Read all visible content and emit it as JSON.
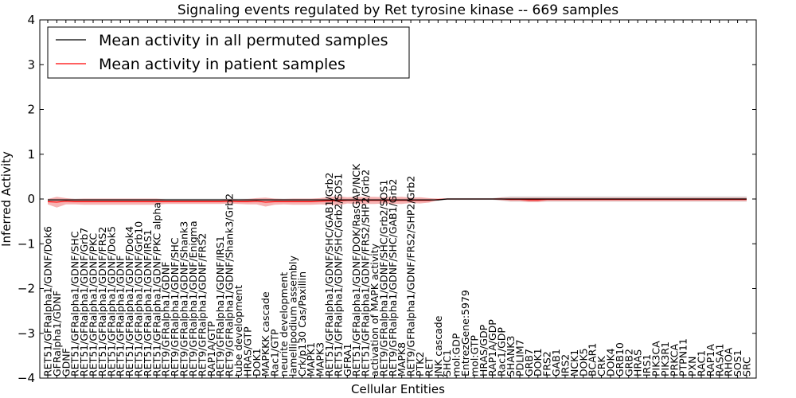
{
  "chart_data": {
    "type": "line",
    "title": "Signaling events regulated by Ret tyrosine kinase -- 669 samples",
    "xlabel": "Cellular Entities",
    "ylabel": "Inferred Activity",
    "ylim": [
      -4,
      4
    ],
    "yticks": [
      "−4",
      "−3",
      "−2",
      "−1",
      "0",
      "1",
      "2",
      "3",
      "4"
    ],
    "grid": false,
    "legend_position": "upper-left",
    "categories": [
      "RET51/GFRalpha1/GDNF/Dok6",
      "GFRalpha1/GDNF",
      "GDNF",
      "RET51/GFRalpha1/GDNF/SHC",
      "RET51/GFRalpha1/GDNF/Grb7",
      "RET51/GFRalpha1/GDNF/PKC",
      "RET51/GFRalpha1/GDNF/FRS2",
      "RET51/GFRalpha1/GDNF/Dok5",
      "RET51/GFRalpha1/GDNF",
      "RET51/GFRalpha1/GDNF/Dok4",
      "RET51/GFRalpha1/GDNF/Grb10",
      "RET51/GFRalpha1/GDNF/IRS1",
      "RET51/GFRalpha1/GDNF/PKC alpha",
      "RET9/GFRalpha1/GDNF",
      "RET9/GFRalpha1/GDNF/SHC",
      "RET9/GFRalpha1/GDNF/Shank3",
      "RET9/GFRalpha1/GDNF/Enigma",
      "RET9/GFRalpha1/GDNF/FRS2",
      "RAP1A/GTP",
      "RET9/GFRalpha1/GDNF/IRS1",
      "RET9/GFRalpha1/GDNF/Shank3/Grb2",
      "tube development",
      "HRAS/GTP",
      "DOK1",
      "MAPKKK cascade",
      "Rac1/GTP",
      "neurite development",
      "lamellipodium assembly",
      "Crk/p130 Cas/Paxillin",
      "MAPK1",
      "MAPK3",
      "RET51/GFRalpha1/GDNF/SHC/GAB1/Grb2",
      "RET51/GFRalpha1/GDNF/SHC/Grb2/SOS1",
      "GFRA1",
      "RET51/GFRalpha1/GDNF/DOK/RasGAP/NCK",
      "RET51/GFRalpha1/GDNF/FRS2/SHP2/Grb2",
      "activation of MAPK activity",
      "RET9/GFRalpha1/GDNF/SHC/Grb2/SOS1",
      "RET9/GFRalpha1/GDNF/SHC/GAB1/Grb2",
      "MAPK8",
      "RET9/GFRalpha1/GDNF/FRS2/SHP2/Grb2",
      "PTK2",
      "RET",
      "JNK cascade",
      "SHC1",
      "mol:GDP",
      "EntrezGene:5979",
      "mol:GTP",
      "HRAS/GDP",
      "RAP1A/GDP",
      "Rac1/GDP",
      "SHANK3",
      "PDLIM7",
      "GRB7",
      "DOK1",
      "FRS2",
      "GAB1",
      "IRS2",
      "NCK1",
      "DOK5",
      "BCAR1",
      "CRK",
      "DOK4",
      "GRB10",
      "GRB2",
      "HRAS",
      "IRS1",
      "PIK3CA",
      "PIK3R1",
      "PRKCA",
      "PTPN11",
      "PXN",
      "RAC1",
      "RAP1A",
      "RASA1",
      "RHOA",
      "SOS1",
      "SRC"
    ],
    "series": [
      {
        "name": "Mean activity in all permuted samples",
        "color": "#000000",
        "values": [
          -0.02,
          -0.02,
          -0.02,
          -0.02,
          -0.02,
          -0.02,
          -0.02,
          -0.02,
          -0.02,
          -0.02,
          -0.02,
          -0.02,
          -0.02,
          -0.02,
          -0.02,
          -0.02,
          -0.02,
          -0.02,
          -0.02,
          -0.02,
          -0.02,
          -0.02,
          -0.02,
          -0.02,
          -0.02,
          -0.02,
          -0.02,
          -0.02,
          -0.02,
          -0.02,
          -0.02,
          -0.02,
          -0.02,
          -0.02,
          -0.02,
          -0.02,
          -0.02,
          -0.02,
          -0.02,
          -0.02,
          -0.02,
          -0.02,
          -0.02,
          -0.02,
          0,
          0,
          0,
          0,
          0,
          0,
          0,
          0,
          0,
          0,
          0,
          0,
          0,
          0,
          0,
          0,
          0,
          0,
          0,
          0,
          0,
          0,
          0,
          0,
          0,
          0,
          0,
          0,
          0,
          0,
          0,
          0,
          0,
          0
        ]
      },
      {
        "name": "Mean activity in patient samples",
        "color": "#ff0000",
        "fill_color": "#f08080",
        "values": [
          -0.06,
          -0.07,
          -0.05,
          -0.06,
          -0.06,
          -0.06,
          -0.06,
          -0.06,
          -0.06,
          -0.06,
          -0.06,
          -0.06,
          -0.06,
          -0.06,
          -0.06,
          -0.06,
          -0.06,
          -0.06,
          -0.06,
          -0.06,
          -0.05,
          -0.06,
          -0.06,
          -0.05,
          -0.07,
          -0.06,
          -0.06,
          -0.06,
          -0.06,
          -0.06,
          -0.05,
          -0.04,
          -0.04,
          -0.03,
          -0.03,
          -0.03,
          -0.03,
          -0.03,
          -0.03,
          -0.03,
          -0.03,
          -0.03,
          -0.03,
          -0.01,
          0,
          0,
          0,
          0,
          0,
          0,
          0,
          -0.01,
          -0.01,
          -0.02,
          -0.02,
          -0.01,
          -0.01,
          -0.01,
          -0.01,
          -0.01,
          -0.01,
          -0.01,
          -0.01,
          -0.01,
          -0.01,
          -0.01,
          -0.01,
          -0.01,
          -0.01,
          -0.01,
          -0.01,
          -0.01,
          -0.01,
          -0.01,
          -0.01,
          -0.01,
          -0.01,
          -0.01
        ],
        "std": [
          0.06,
          0.12,
          0.07,
          0.06,
          0.07,
          0.07,
          0.07,
          0.07,
          0.07,
          0.07,
          0.07,
          0.07,
          0.07,
          0.05,
          0.05,
          0.05,
          0.05,
          0.05,
          0.05,
          0.05,
          0.05,
          0.05,
          0.06,
          0.07,
          0.1,
          0.07,
          0.06,
          0.07,
          0.07,
          0.07,
          0.07,
          0.09,
          0.1,
          0.07,
          0.08,
          0.08,
          0.08,
          0.07,
          0.08,
          0.08,
          0.06,
          0.07,
          0.05,
          0.02,
          0.01,
          0.01,
          0.01,
          0.01,
          0.01,
          0.01,
          0.03,
          0.04,
          0.04,
          0.05,
          0.05,
          0.04,
          0.04,
          0.04,
          0.04,
          0.04,
          0.04,
          0.04,
          0.04,
          0.04,
          0.04,
          0.04,
          0.04,
          0.04,
          0.04,
          0.04,
          0.04,
          0.04,
          0.04,
          0.04,
          0.04,
          0.04,
          0.04,
          0.04
        ]
      }
    ],
    "permuted_std": [
      0.03,
      0.03,
      0.03,
      0.03,
      0.03,
      0.03,
      0.03,
      0.03,
      0.03,
      0.03,
      0.03,
      0.03,
      0.03,
      0.03,
      0.03,
      0.03,
      0.03,
      0.03,
      0.03,
      0.03,
      0.03,
      0.03,
      0.03,
      0.03,
      0.03,
      0.03,
      0.03,
      0.03,
      0.03,
      0.03,
      0.03,
      0.03,
      0.03,
      0.03,
      0.03,
      0.03,
      0.03,
      0.03,
      0.03,
      0.03,
      0.03,
      0.03,
      0.03,
      0.02,
      0.02,
      0.02,
      0.02,
      0.02,
      0.02,
      0.02,
      0.04,
      0.06,
      0.06,
      0.06,
      0.06,
      0.06,
      0.06,
      0.06,
      0.06,
      0.06,
      0.06,
      0.06,
      0.06,
      0.06,
      0.06,
      0.06,
      0.06,
      0.06,
      0.06,
      0.06,
      0.06,
      0.06,
      0.06,
      0.06,
      0.06,
      0.06,
      0.06,
      0.06
    ]
  }
}
